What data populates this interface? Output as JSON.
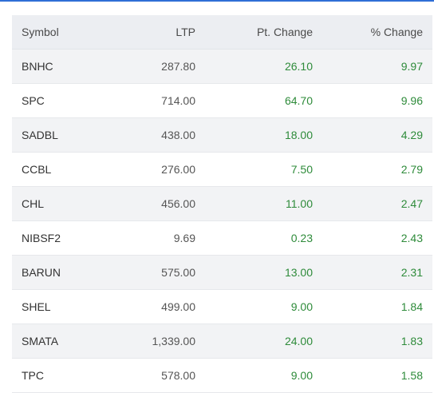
{
  "colors": {
    "accent": "#2f6fd6",
    "positive": "#2e8b3a",
    "header_bg": "#eceef2",
    "row_alt_bg": "#f2f3f5"
  },
  "table": {
    "headers": {
      "symbol": "Symbol",
      "ltp": "LTP",
      "pt_change": "Pt. Change",
      "pct_change": "% Change"
    },
    "rows": [
      {
        "symbol": "BNHC",
        "ltp": "287.80",
        "pt_change": "26.10",
        "pct_change": "9.97"
      },
      {
        "symbol": "SPC",
        "ltp": "714.00",
        "pt_change": "64.70",
        "pct_change": "9.96"
      },
      {
        "symbol": "SADBL",
        "ltp": "438.00",
        "pt_change": "18.00",
        "pct_change": "4.29"
      },
      {
        "symbol": "CCBL",
        "ltp": "276.00",
        "pt_change": "7.50",
        "pct_change": "2.79"
      },
      {
        "symbol": "CHL",
        "ltp": "456.00",
        "pt_change": "11.00",
        "pct_change": "2.47"
      },
      {
        "symbol": "NIBSF2",
        "ltp": "9.69",
        "pt_change": "0.23",
        "pct_change": "2.43"
      },
      {
        "symbol": "BARUN",
        "ltp": "575.00",
        "pt_change": "13.00",
        "pct_change": "2.31"
      },
      {
        "symbol": "SHEL",
        "ltp": "499.00",
        "pt_change": "9.00",
        "pct_change": "1.84"
      },
      {
        "symbol": "SMATA",
        "ltp": "1,339.00",
        "pt_change": "24.00",
        "pct_change": "1.83"
      },
      {
        "symbol": "TPC",
        "ltp": "578.00",
        "pt_change": "9.00",
        "pct_change": "1.58"
      }
    ]
  }
}
